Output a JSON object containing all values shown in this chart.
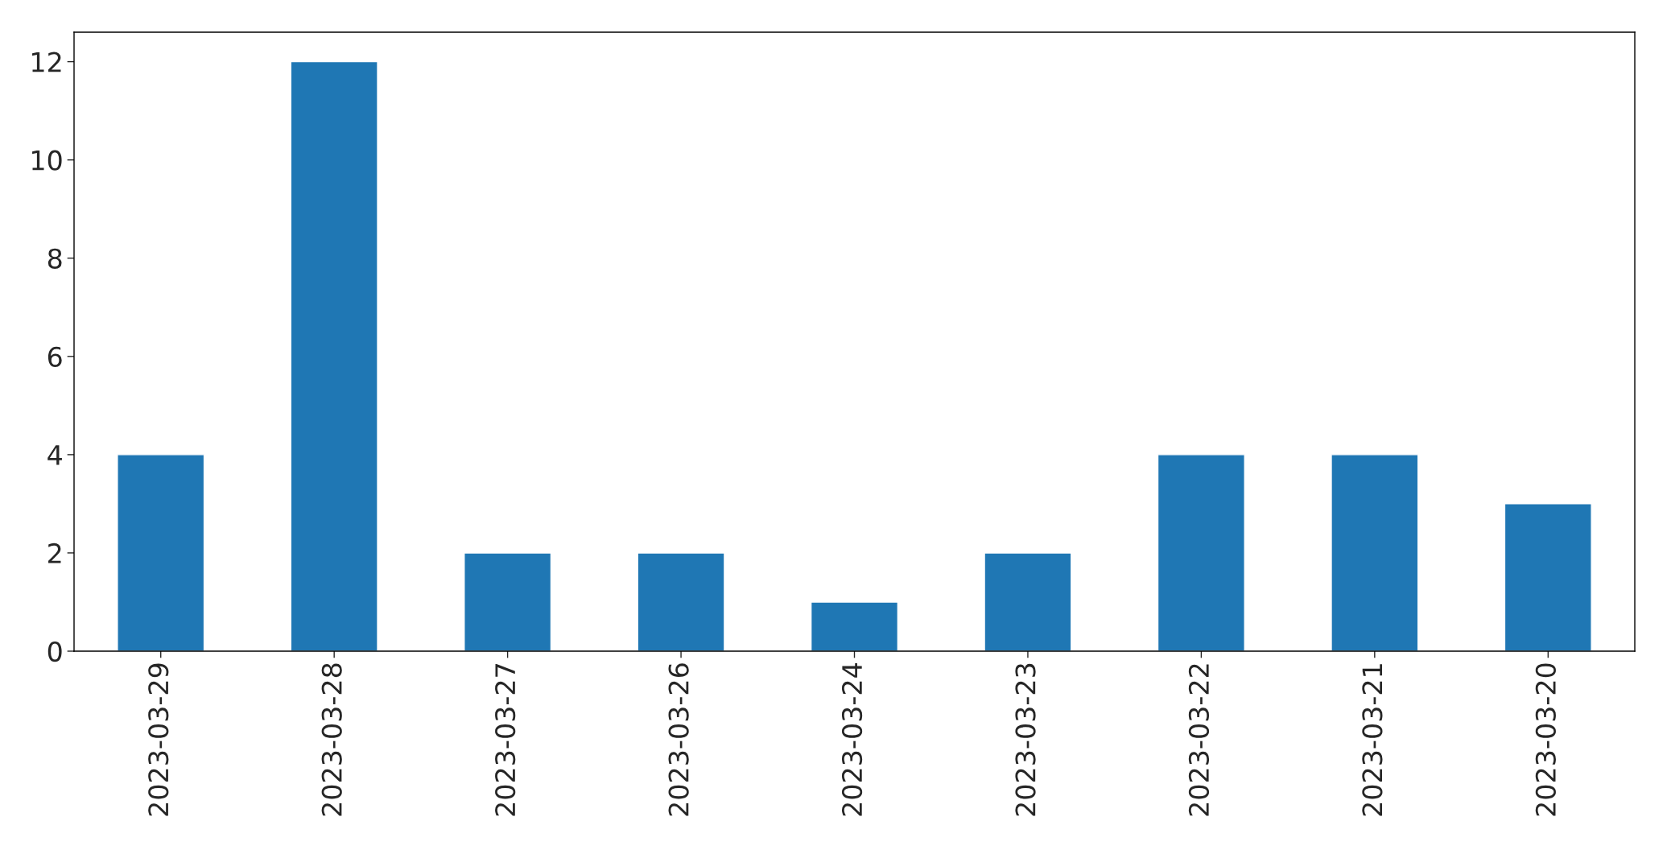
{
  "chart_data": {
    "type": "bar",
    "categories": [
      "2023-03-29",
      "2023-03-28",
      "2023-03-27",
      "2023-03-26",
      "2023-03-24",
      "2023-03-23",
      "2023-03-22",
      "2023-03-21",
      "2023-03-20"
    ],
    "values": [
      4,
      12,
      2,
      2,
      1,
      2,
      4,
      4,
      3
    ],
    "color": "#1f77b4",
    "ylim": [
      0,
      12.6
    ],
    "yticks": [
      0,
      2,
      4,
      6,
      8,
      10,
      12
    ],
    "grid": false
  }
}
